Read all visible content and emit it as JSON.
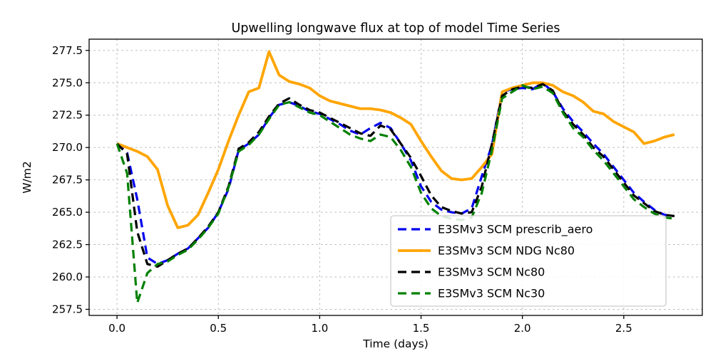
{
  "chart_data": {
    "type": "line",
    "title": "Upwelling longwave flux at top of model Time Series",
    "xlabel": "Time (days)",
    "ylabel": "W/m2",
    "xlim": [
      -0.1375,
      2.8875
    ],
    "ylim": [
      257.03,
      278.37
    ],
    "xticks": [
      0.0,
      0.5,
      1.0,
      1.5,
      2.0,
      2.5
    ],
    "yticks": [
      257.5,
      260.0,
      262.5,
      265.0,
      267.5,
      270.0,
      272.5,
      275.0,
      277.5
    ],
    "grid": true,
    "legend_position": "lower right",
    "x": [
      0.0,
      0.05,
      0.1,
      0.15,
      0.2,
      0.25,
      0.3,
      0.35,
      0.4,
      0.45,
      0.5,
      0.55,
      0.6,
      0.65,
      0.7,
      0.75,
      0.8,
      0.85,
      0.9,
      0.95,
      1.0,
      1.05,
      1.1,
      1.15,
      1.2,
      1.25,
      1.3,
      1.35,
      1.4,
      1.45,
      1.5,
      1.55,
      1.6,
      1.65,
      1.7,
      1.75,
      1.8,
      1.85,
      1.9,
      1.95,
      2.0,
      2.05,
      2.1,
      2.15,
      2.2,
      2.25,
      2.3,
      2.35,
      2.4,
      2.45,
      2.5,
      2.55,
      2.6,
      2.65,
      2.7,
      2.75
    ],
    "series": [
      {
        "id": "prescrib-aero",
        "name": "E3SMv3 SCM prescrib_aero",
        "color": "#0000ee",
        "dashed": true,
        "width": 3.2,
        "values": [
          270.3,
          269.6,
          266.0,
          261.5,
          261.0,
          261.3,
          261.8,
          262.2,
          263.0,
          263.8,
          265.0,
          266.8,
          269.8,
          270.3,
          271.0,
          272.3,
          273.3,
          273.5,
          273.2,
          272.8,
          272.6,
          272.2,
          271.8,
          271.3,
          271.0,
          271.5,
          271.9,
          271.5,
          270.3,
          269.0,
          267.0,
          265.8,
          265.2,
          265.0,
          264.9,
          265.3,
          267.8,
          270.2,
          274.3,
          274.5,
          274.6,
          274.5,
          275.0,
          274.3,
          273.0,
          272.0,
          271.2,
          270.3,
          269.5,
          268.5,
          267.5,
          266.5,
          265.8,
          265.2,
          264.8,
          264.7
        ]
      },
      {
        "id": "ndg-nc80",
        "name": "E3SMv3 SCM NDG Nc80",
        "color": "#ffa500",
        "dashed": false,
        "width": 3.8,
        "values": [
          270.3,
          270.0,
          269.7,
          269.3,
          268.3,
          265.5,
          263.8,
          264.0,
          264.8,
          266.5,
          268.3,
          270.5,
          272.5,
          274.3,
          274.6,
          277.4,
          275.6,
          275.1,
          274.9,
          274.6,
          274.0,
          273.6,
          273.4,
          273.2,
          273.0,
          273.0,
          272.9,
          272.7,
          272.3,
          271.8,
          270.5,
          269.3,
          268.2,
          267.6,
          267.5,
          267.6,
          268.5,
          269.5,
          274.3,
          274.6,
          274.8,
          275.0,
          275.0,
          274.8,
          274.3,
          274.0,
          273.5,
          272.8,
          272.6,
          272.0,
          271.6,
          271.2,
          270.3,
          270.5,
          270.8,
          271.0
        ]
      },
      {
        "id": "nc80",
        "name": "E3SMv3 SCM Nc80",
        "color": "#000000",
        "dashed": true,
        "width": 3.2,
        "values": [
          270.3,
          269.5,
          263.5,
          261.0,
          260.8,
          261.3,
          261.8,
          262.2,
          263.0,
          263.9,
          265.0,
          267.0,
          269.9,
          270.4,
          271.2,
          272.4,
          273.4,
          273.8,
          273.3,
          272.9,
          272.7,
          272.3,
          271.9,
          271.5,
          271.1,
          270.9,
          271.7,
          271.4,
          270.3,
          269.2,
          267.8,
          266.3,
          265.4,
          265.1,
          264.9,
          265.0,
          267.0,
          270.3,
          274.0,
          274.5,
          274.7,
          274.6,
          274.9,
          274.4,
          272.8,
          271.8,
          271.0,
          270.0,
          269.3,
          268.3,
          267.3,
          266.3,
          265.7,
          265.1,
          264.8,
          264.7
        ]
      },
      {
        "id": "nc30",
        "name": "E3SMv3 SCM Nc30",
        "color": "#008000",
        "dashed": true,
        "width": 3.2,
        "values": [
          270.3,
          268.0,
          258.0,
          260.3,
          261.0,
          261.2,
          261.7,
          262.1,
          262.9,
          263.8,
          264.9,
          266.9,
          269.7,
          270.2,
          271.0,
          272.2,
          273.3,
          273.5,
          273.1,
          272.7,
          272.5,
          272.0,
          271.5,
          271.0,
          270.7,
          270.5,
          271.0,
          270.8,
          269.8,
          268.5,
          266.5,
          265.3,
          264.7,
          264.5,
          264.4,
          264.6,
          266.5,
          269.8,
          273.8,
          274.3,
          274.8,
          274.5,
          274.7,
          274.2,
          272.7,
          271.5,
          270.8,
          269.8,
          269.0,
          268.0,
          267.0,
          266.0,
          265.4,
          264.9,
          264.6,
          264.5
        ]
      }
    ],
    "style": {
      "grid_color": "#b8b8b8",
      "spine_color": "#000000",
      "legend_border": "#cccccc",
      "legend_bg": "#ffffff"
    }
  }
}
